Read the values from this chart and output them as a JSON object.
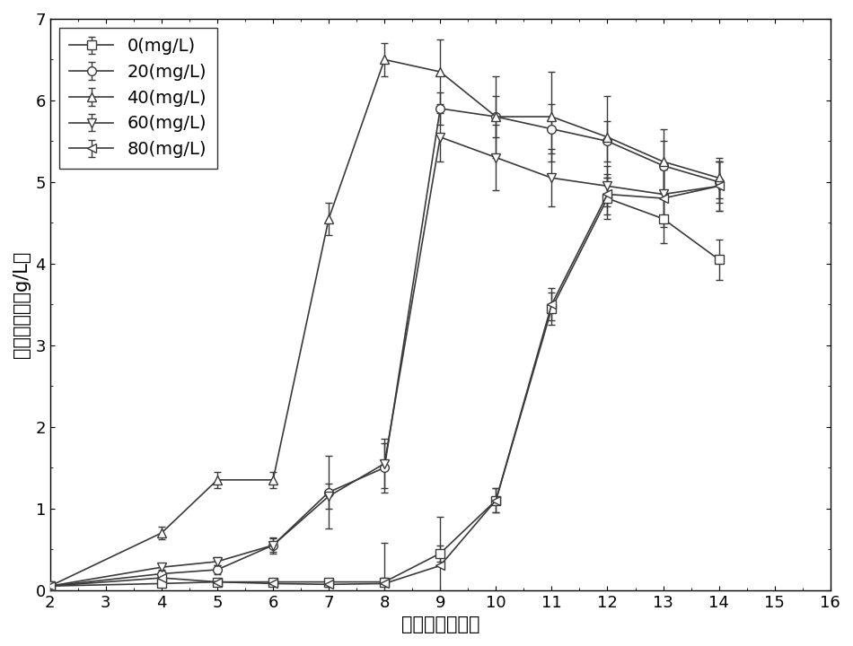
{
  "series": [
    {
      "label": "0(mg/L)",
      "marker": "s",
      "x": [
        2,
        4,
        5,
        6,
        7,
        8,
        9,
        10,
        11,
        12,
        13,
        14
      ],
      "y": [
        0.05,
        0.08,
        0.1,
        0.1,
        0.1,
        0.1,
        0.45,
        1.1,
        3.45,
        4.8,
        4.55,
        4.05
      ],
      "yerr": [
        0.03,
        0.03,
        0.03,
        0.03,
        0.03,
        0.05,
        0.1,
        0.15,
        0.2,
        0.25,
        0.3,
        0.25
      ]
    },
    {
      "label": "20(mg/L)",
      "marker": "o",
      "x": [
        2,
        4,
        5,
        6,
        7,
        8,
        9,
        10,
        11,
        12,
        13,
        14
      ],
      "y": [
        0.05,
        0.2,
        0.25,
        0.55,
        1.2,
        1.5,
        5.9,
        5.8,
        5.65,
        5.5,
        5.2,
        5.0
      ],
      "yerr": [
        0.03,
        0.05,
        0.05,
        0.1,
        0.45,
        0.3,
        0.2,
        0.25,
        0.3,
        0.25,
        0.3,
        0.25
      ]
    },
    {
      "label": "40(mg/L)",
      "marker": "^",
      "x": [
        2,
        4,
        5,
        6,
        7,
        8,
        9,
        10,
        11,
        12,
        13,
        14
      ],
      "y": [
        0.05,
        0.7,
        1.35,
        1.35,
        4.55,
        6.5,
        6.35,
        5.8,
        5.8,
        5.55,
        5.25,
        5.05
      ],
      "yerr": [
        0.03,
        0.08,
        0.1,
        0.1,
        0.2,
        0.2,
        0.4,
        0.5,
        0.55,
        0.5,
        0.4,
        0.25
      ]
    },
    {
      "label": "60(mg/L)",
      "marker": "v",
      "x": [
        2,
        4,
        5,
        6,
        7,
        8,
        9,
        10,
        11,
        12,
        13,
        14
      ],
      "y": [
        0.05,
        0.28,
        0.35,
        0.55,
        1.15,
        1.55,
        5.55,
        5.3,
        5.05,
        4.95,
        4.85,
        4.95
      ],
      "yerr": [
        0.03,
        0.05,
        0.05,
        0.08,
        0.15,
        0.3,
        0.3,
        0.4,
        0.35,
        0.25,
        0.35,
        0.3
      ]
    },
    {
      "label": "80(mg/L)",
      "marker": "<",
      "x": [
        2,
        4,
        5,
        6,
        7,
        8,
        9,
        10,
        11,
        12,
        13,
        14
      ],
      "y": [
        0.05,
        0.15,
        0.1,
        0.08,
        0.07,
        0.08,
        0.3,
        1.1,
        3.5,
        4.85,
        4.8,
        4.95
      ],
      "yerr": [
        0.03,
        0.03,
        0.03,
        0.03,
        0.03,
        0.5,
        0.6,
        0.15,
        0.2,
        0.25,
        0.35,
        0.3
      ]
    }
  ],
  "xlabel": "培养时间（天）",
  "ylabel": "生物量浓度（g/L）",
  "xlim": [
    2,
    16
  ],
  "ylim": [
    0,
    7
  ],
  "xticks": [
    2,
    3,
    4,
    5,
    6,
    7,
    8,
    9,
    10,
    11,
    12,
    13,
    14,
    15,
    16
  ],
  "yticks": [
    0,
    1,
    2,
    3,
    4,
    5,
    6,
    7
  ],
  "line_color": "#3a3a3a",
  "marker_size": 7,
  "linewidth": 1.2,
  "capsize": 3,
  "elinewidth": 1.0,
  "legend_fontsize": 14,
  "axis_fontsize": 15,
  "tick_fontsize": 13,
  "figsize": [
    9.5,
    7.2
  ]
}
